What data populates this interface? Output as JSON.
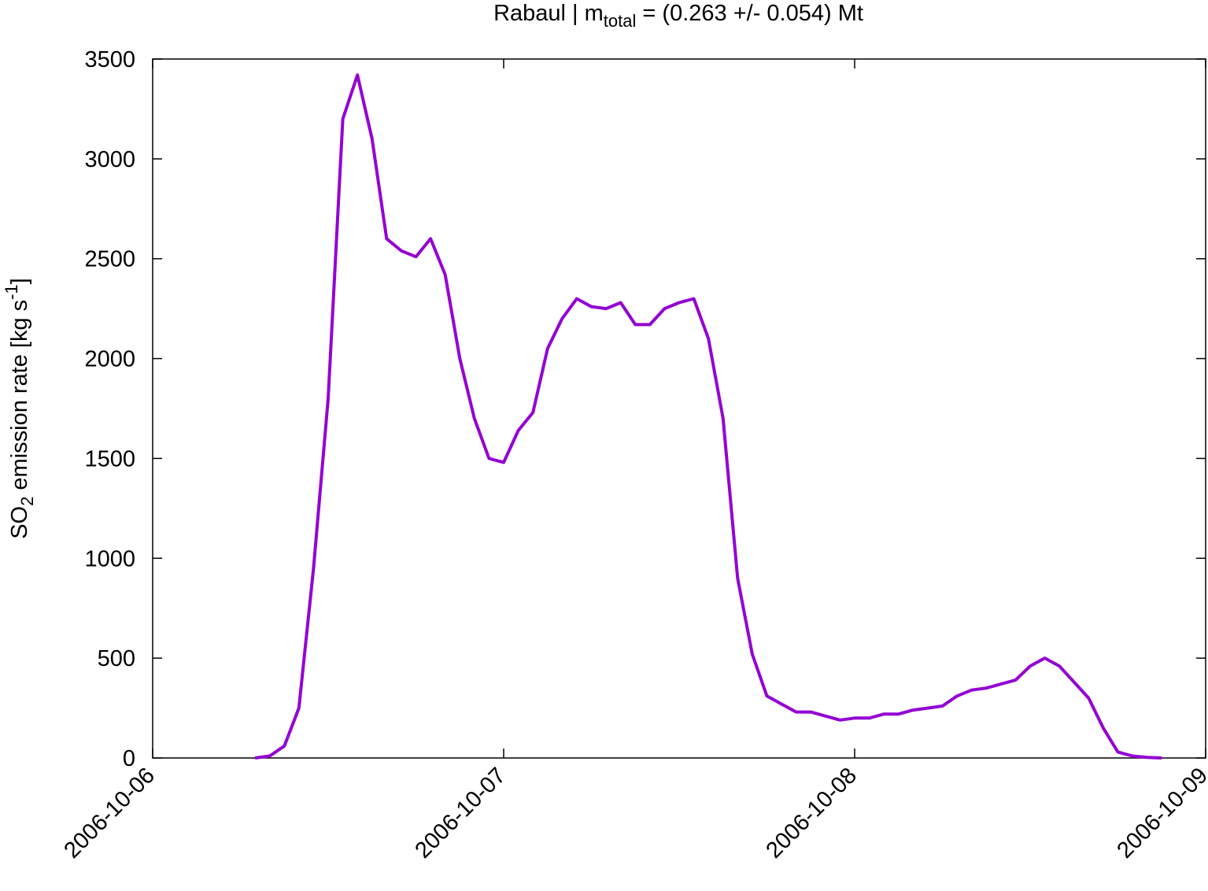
{
  "chart_data": {
    "type": "line",
    "title": {
      "prefix": "Rabaul | m",
      "subscript": "total",
      "suffix": " = (0.263 +/- 0.054) Mt"
    },
    "y_label": {
      "prefix": "SO",
      "subscript": "2",
      "middle": " emission rate [kg s",
      "superscript": "-1",
      "suffix": "]"
    },
    "x": [
      "2006-10-06T07:00",
      "2006-10-06T08:00",
      "2006-10-06T09:00",
      "2006-10-06T10:00",
      "2006-10-06T11:00",
      "2006-10-06T12:00",
      "2006-10-06T13:00",
      "2006-10-06T14:00",
      "2006-10-06T15:00",
      "2006-10-06T16:00",
      "2006-10-06T17:00",
      "2006-10-06T18:00",
      "2006-10-06T19:00",
      "2006-10-06T20:00",
      "2006-10-06T21:00",
      "2006-10-06T22:00",
      "2006-10-06T23:00",
      "2006-10-07T00:00",
      "2006-10-07T01:00",
      "2006-10-07T02:00",
      "2006-10-07T03:00",
      "2006-10-07T04:00",
      "2006-10-07T05:00",
      "2006-10-07T06:00",
      "2006-10-07T07:00",
      "2006-10-07T08:00",
      "2006-10-07T09:00",
      "2006-10-07T10:00",
      "2006-10-07T11:00",
      "2006-10-07T12:00",
      "2006-10-07T13:00",
      "2006-10-07T14:00",
      "2006-10-07T15:00",
      "2006-10-07T16:00",
      "2006-10-07T17:00",
      "2006-10-07T18:00",
      "2006-10-07T19:00",
      "2006-10-07T20:00",
      "2006-10-07T21:00",
      "2006-10-07T22:00",
      "2006-10-07T23:00",
      "2006-10-08T00:00",
      "2006-10-08T01:00",
      "2006-10-08T02:00",
      "2006-10-08T03:00",
      "2006-10-08T04:00",
      "2006-10-08T05:00",
      "2006-10-08T06:00",
      "2006-10-08T07:00",
      "2006-10-08T08:00",
      "2006-10-08T09:00",
      "2006-10-08T10:00",
      "2006-10-08T11:00",
      "2006-10-08T12:00",
      "2006-10-08T13:00",
      "2006-10-08T14:00",
      "2006-10-08T15:00",
      "2006-10-08T16:00",
      "2006-10-08T17:00",
      "2006-10-08T18:00",
      "2006-10-08T19:00",
      "2006-10-08T20:00",
      "2006-10-08T21:00"
    ],
    "series": [
      {
        "color": "#9400d3",
        "values": [
          0,
          10,
          60,
          250,
          950,
          1800,
          3200,
          3420,
          3100,
          2600,
          2540,
          2510,
          2600,
          2420,
          2000,
          1700,
          1500,
          1480,
          1640,
          1730,
          2050,
          2200,
          2300,
          2260,
          2250,
          2280,
          2170,
          2170,
          2250,
          2280,
          2300,
          2100,
          1700,
          900,
          520,
          310,
          270,
          230,
          230,
          210,
          190,
          200,
          200,
          220,
          220,
          240,
          250,
          260,
          310,
          340,
          350,
          370,
          390,
          460,
          500,
          460,
          380,
          300,
          150,
          30,
          10,
          3,
          0
        ]
      }
    ],
    "xlim": [
      "2006-10-06",
      "2006-10-09"
    ],
    "xticks": [
      "2006-10-06",
      "2006-10-07",
      "2006-10-08",
      "2006-10-09"
    ],
    "ylim": [
      0,
      3500
    ],
    "yticks": [
      0,
      500,
      1000,
      1500,
      2000,
      2500,
      3000,
      3500
    ]
  }
}
